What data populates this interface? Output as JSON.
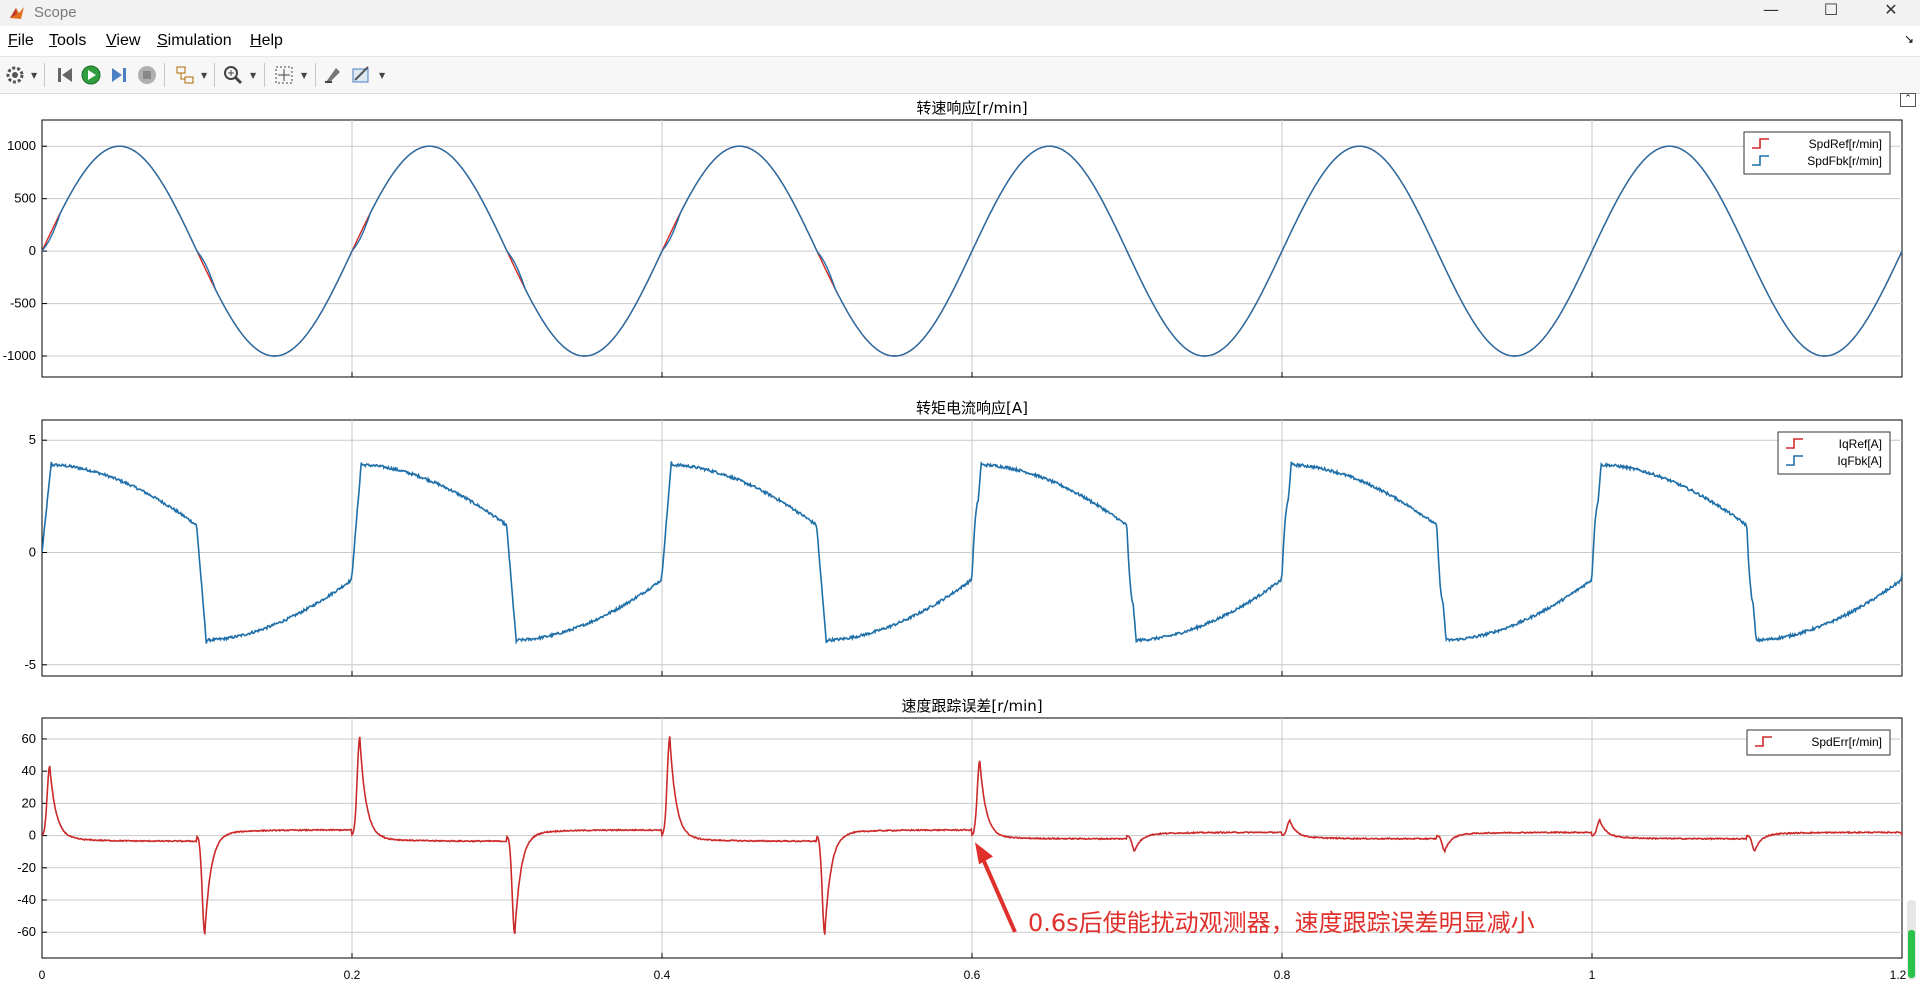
{
  "window": {
    "title": "Scope",
    "controls": {
      "minimize": "—",
      "maximize": "☐",
      "close": "✕"
    }
  },
  "menu": {
    "items": [
      {
        "mnemonic": "F",
        "rest": "ile"
      },
      {
        "mnemonic": "T",
        "rest": "ools"
      },
      {
        "mnemonic": "V",
        "rest": "iew"
      },
      {
        "mnemonic": "S",
        "rest": "imulation"
      },
      {
        "mnemonic": "H",
        "rest": "elp"
      }
    ]
  },
  "toolbar": {
    "icons": [
      "settings-icon",
      "step-back-icon",
      "run-icon",
      "step-forward-icon",
      "stop-icon",
      "highlight-simulink-block-icon",
      "zoom-in-icon",
      "autoscale-icon",
      "write-data-icon",
      "style-icon"
    ]
  },
  "colors": {
    "ref": "#d62728",
    "fbk": "#1f6fa8",
    "err": "#cc2a2a",
    "grid": "#c9c9c9",
    "annotation": "#e0302c"
  },
  "x_axis": {
    "ticks": [
      "0",
      "0.2",
      "0.4",
      "0.6",
      "0.8",
      "1",
      "1.2"
    ]
  },
  "chart_data": [
    {
      "type": "line",
      "title": "转速响应[r/min]",
      "xlim": [
        0,
        1.2
      ],
      "ylim": [
        -1200,
        1250
      ],
      "yticks": [
        1000,
        500,
        0,
        -500,
        -1000
      ],
      "ytick_labels": [
        "1000",
        "500",
        "0",
        "-500",
        "-1000"
      ],
      "grid": true,
      "legend": "top-right",
      "series": [
        {
          "name": "SpdRef[r/min]",
          "color": "ref",
          "formula": "1000*sin(2*pi*5*t)"
        },
        {
          "name": "SpdFbk[r/min]",
          "color": "fbk",
          "formula": "tracks SpdRef; small lag at zero crossings before t=0.6"
        }
      ]
    },
    {
      "type": "line",
      "title": "转矩电流响应[A]",
      "xlim": [
        0,
        1.2
      ],
      "ylim": [
        -5.5,
        5.9
      ],
      "yticks": [
        5,
        0,
        -5
      ],
      "ytick_labels": [
        "5",
        "0",
        "-5"
      ],
      "grid": true,
      "legend": "top-right",
      "series": [
        {
          "name": "IqRef[A]",
          "color": "ref",
          "formula": "≈ overlapped with IqFbk"
        },
        {
          "name": "IqFbk[A]",
          "color": "fbk",
          "peak": 3.9,
          "trough": -3.9,
          "jump_times": [
            0,
            0.1,
            0.2,
            0.3,
            0.4,
            0.5,
            0.6,
            0.7,
            0.8,
            0.9,
            1.0,
            1.1
          ]
        }
      ]
    },
    {
      "type": "line",
      "title": "速度跟踪误差[r/min]",
      "xlim": [
        0,
        1.2
      ],
      "ylim": [
        -76,
        73
      ],
      "yticks": [
        60,
        40,
        20,
        0,
        -20,
        -40,
        -60
      ],
      "ytick_labels": [
        "60",
        "40",
        "20",
        "0",
        "-20",
        "-40",
        "-60"
      ],
      "grid": true,
      "legend": "top-right",
      "series": [
        {
          "name": "SpdErr[r/min]",
          "color": "err",
          "spikes": [
            [
              0.005,
              44
            ],
            [
              0.105,
              -62
            ],
            [
              0.205,
              62
            ],
            [
              0.305,
              -62
            ],
            [
              0.405,
              62
            ],
            [
              0.505,
              -62
            ],
            [
              0.605,
              47
            ],
            [
              0.705,
              -10
            ],
            [
              0.805,
              10
            ],
            [
              0.905,
              -10
            ],
            [
              1.005,
              10
            ],
            [
              1.105,
              -10
            ]
          ]
        }
      ],
      "annotation": "0.6s后使能扰动观测器，速度跟踪误差明显减小"
    }
  ]
}
